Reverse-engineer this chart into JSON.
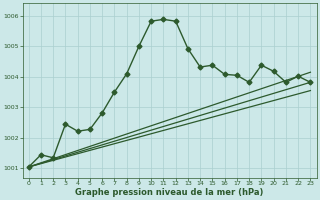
{
  "title": "Graphe pression niveau de la mer (hPa)",
  "bg_color": "#cce8e8",
  "grid_color": "#aacfcf",
  "line_color": "#2d5a2d",
  "xlim": [
    -0.5,
    23.5
  ],
  "ylim": [
    1000.7,
    1006.4
  ],
  "yticks": [
    1001,
    1002,
    1003,
    1004,
    1005,
    1006
  ],
  "xticks": [
    0,
    1,
    2,
    3,
    4,
    5,
    6,
    7,
    8,
    9,
    10,
    11,
    12,
    13,
    14,
    15,
    16,
    17,
    18,
    19,
    20,
    21,
    22,
    23
  ],
  "series": [
    {
      "x": [
        0,
        1,
        2,
        3,
        4,
        5,
        6,
        7,
        8,
        9,
        10,
        11,
        12,
        13,
        14,
        15,
        16,
        17,
        18,
        19,
        20,
        21,
        22,
        23
      ],
      "y": [
        1001.05,
        1001.45,
        1001.35,
        1002.45,
        1002.22,
        1002.28,
        1002.82,
        1003.5,
        1004.1,
        1005.0,
        1005.82,
        1005.88,
        1005.82,
        1004.92,
        1004.32,
        1004.38,
        1004.08,
        1004.05,
        1003.82,
        1004.38,
        1004.18,
        1003.82,
        1004.02,
        1003.82
      ],
      "marker": "D",
      "markersize": 2.5,
      "linewidth": 1.0
    },
    {
      "x": [
        0,
        23
      ],
      "y": [
        1001.05,
        1004.15
      ],
      "marker": null,
      "linewidth": 0.9
    },
    {
      "x": [
        0,
        23
      ],
      "y": [
        1001.05,
        1003.82
      ],
      "marker": null,
      "linewidth": 0.9
    },
    {
      "x": [
        0,
        23
      ],
      "y": [
        1001.05,
        1003.55
      ],
      "marker": null,
      "linewidth": 0.9
    }
  ]
}
